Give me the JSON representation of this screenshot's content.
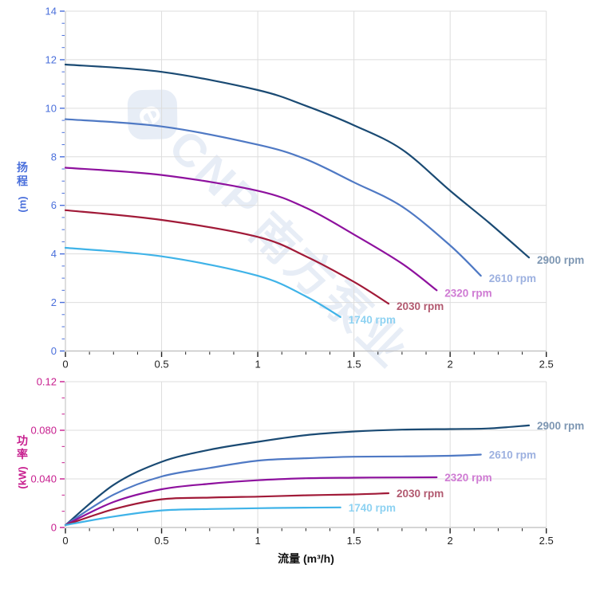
{
  "watermark": {
    "logo": "e",
    "brand": "CNP",
    "company": "南方泵业"
  },
  "chart_data": {
    "type": "line",
    "xlabel": "流量 (m³/h)",
    "xlim": [
      0,
      2.5
    ],
    "xtick_values": [
      0,
      0.5,
      1,
      1.5,
      2,
      2.5
    ],
    "xtick_labels": [
      "0",
      "0.5",
      "1",
      "1.5",
      "2",
      "2.5"
    ],
    "x_minor_divisions": 4,
    "xaxis_color": "#1f1f1f",
    "grid_color": "#dddddd",
    "axis_line_color": "#bcbcbc",
    "legend_position": "curve-end-labels",
    "plots": [
      {
        "name": "head-curves",
        "ylabel_chars": [
          "扬",
          "程"
        ],
        "ylabel_unit": "(m)",
        "axis_color": "#4a6fdb",
        "ylim": [
          0,
          14
        ],
        "ytick_values": [
          0,
          2,
          4,
          6,
          8,
          10,
          12,
          14
        ],
        "ytick_labels": [
          "0",
          "2",
          "4",
          "6",
          "8",
          "10",
          "12",
          "14"
        ],
        "y_minor_divisions": 4,
        "series": [
          {
            "label": "2900 rpm",
            "color": "#1a4a73",
            "label_color": "#7e97b3",
            "points": [
              [
                0,
                11.8
              ],
              [
                0.5,
                11.5
              ],
              [
                1,
                10.75
              ],
              [
                1.25,
                10.1
              ],
              [
                1.5,
                9.3
              ],
              [
                1.75,
                8.3
              ],
              [
                2,
                6.6
              ],
              [
                2.2,
                5.3
              ],
              [
                2.41,
                3.85
              ]
            ]
          },
          {
            "label": "2610 rpm",
            "color": "#4f79c4",
            "label_color": "#9db1e0",
            "points": [
              [
                0,
                9.55
              ],
              [
                0.5,
                9.25
              ],
              [
                1,
                8.5
              ],
              [
                1.25,
                7.9
              ],
              [
                1.5,
                6.95
              ],
              [
                1.75,
                5.95
              ],
              [
                2,
                4.35
              ],
              [
                2.16,
                3.1
              ]
            ]
          },
          {
            "label": "2320 rpm",
            "color": "#8e119e",
            "label_color": "#cf7bd3",
            "points": [
              [
                0,
                7.55
              ],
              [
                0.5,
                7.25
              ],
              [
                1,
                6.6
              ],
              [
                1.25,
                5.9
              ],
              [
                1.5,
                4.8
              ],
              [
                1.75,
                3.6
              ],
              [
                1.93,
                2.5
              ]
            ]
          },
          {
            "label": "2030 rpm",
            "color": "#a11a38",
            "label_color": "#b25a70",
            "points": [
              [
                0,
                5.8
              ],
              [
                0.5,
                5.4
              ],
              [
                1,
                4.7
              ],
              [
                1.25,
                3.9
              ],
              [
                1.5,
                2.85
              ],
              [
                1.68,
                1.95
              ]
            ]
          },
          {
            "label": "1740 rpm",
            "color": "#3fb3e8",
            "label_color": "#8ed2f2",
            "points": [
              [
                0,
                4.25
              ],
              [
                0.5,
                3.9
              ],
              [
                1,
                3.1
              ],
              [
                1.25,
                2.25
              ],
              [
                1.43,
                1.4
              ]
            ]
          }
        ]
      },
      {
        "name": "power-curves",
        "ylabel_chars": [
          "功",
          "率"
        ],
        "ylabel_unit": "(kW)",
        "axis_color": "#c71d8e",
        "ylim": [
          0,
          0.12
        ],
        "ytick_values": [
          0,
          0.04,
          0.08,
          0.12
        ],
        "ytick_labels": [
          "0",
          "0.040",
          "0.080",
          "0.12"
        ],
        "y_minor_divisions": 3,
        "series": [
          {
            "label": "2900 rpm",
            "color": "#1a4a73",
            "label_color": "#7e97b3",
            "points": [
              [
                0,
                0.002
              ],
              [
                0.25,
                0.035
              ],
              [
                0.5,
                0.054
              ],
              [
                0.75,
                0.064
              ],
              [
                1,
                0.0705
              ],
              [
                1.25,
                0.076
              ],
              [
                1.5,
                0.079
              ],
              [
                1.75,
                0.0805
              ],
              [
                2,
                0.081
              ],
              [
                2.2,
                0.0815
              ],
              [
                2.41,
                0.084
              ]
            ]
          },
          {
            "label": "2610 rpm",
            "color": "#4f79c4",
            "label_color": "#9db1e0",
            "points": [
              [
                0,
                0.002
              ],
              [
                0.25,
                0.027
              ],
              [
                0.5,
                0.042
              ],
              [
                0.75,
                0.049
              ],
              [
                1,
                0.055
              ],
              [
                1.25,
                0.057
              ],
              [
                1.5,
                0.0582
              ],
              [
                1.75,
                0.0585
              ],
              [
                2,
                0.059
              ],
              [
                2.16,
                0.06
              ]
            ]
          },
          {
            "label": "2320 rpm",
            "color": "#8e119e",
            "label_color": "#cf7bd3",
            "points": [
              [
                0,
                0.002
              ],
              [
                0.25,
                0.021
              ],
              [
                0.5,
                0.0315
              ],
              [
                0.75,
                0.036
              ],
              [
                1,
                0.0389
              ],
              [
                1.25,
                0.0405
              ],
              [
                1.5,
                0.041
              ],
              [
                1.75,
                0.0412
              ],
              [
                1.93,
                0.0413
              ]
            ]
          },
          {
            "label": "2030 rpm",
            "color": "#a11a38",
            "label_color": "#b25a70",
            "points": [
              [
                0,
                0.002
              ],
              [
                0.25,
                0.015
              ],
              [
                0.5,
                0.0232
              ],
              [
                0.75,
                0.0246
              ],
              [
                1,
                0.0254
              ],
              [
                1.25,
                0.0265
              ],
              [
                1.5,
                0.0272
              ],
              [
                1.68,
                0.0282
              ]
            ]
          },
          {
            "label": "1740 rpm",
            "color": "#3fb3e8",
            "label_color": "#8ed2f2",
            "points": [
              [
                0,
                0.002
              ],
              [
                0.25,
                0.009
              ],
              [
                0.5,
                0.014
              ],
              [
                0.75,
                0.0152
              ],
              [
                1,
                0.0159
              ],
              [
                1.25,
                0.0163
              ],
              [
                1.43,
                0.0165
              ]
            ]
          }
        ]
      }
    ]
  }
}
